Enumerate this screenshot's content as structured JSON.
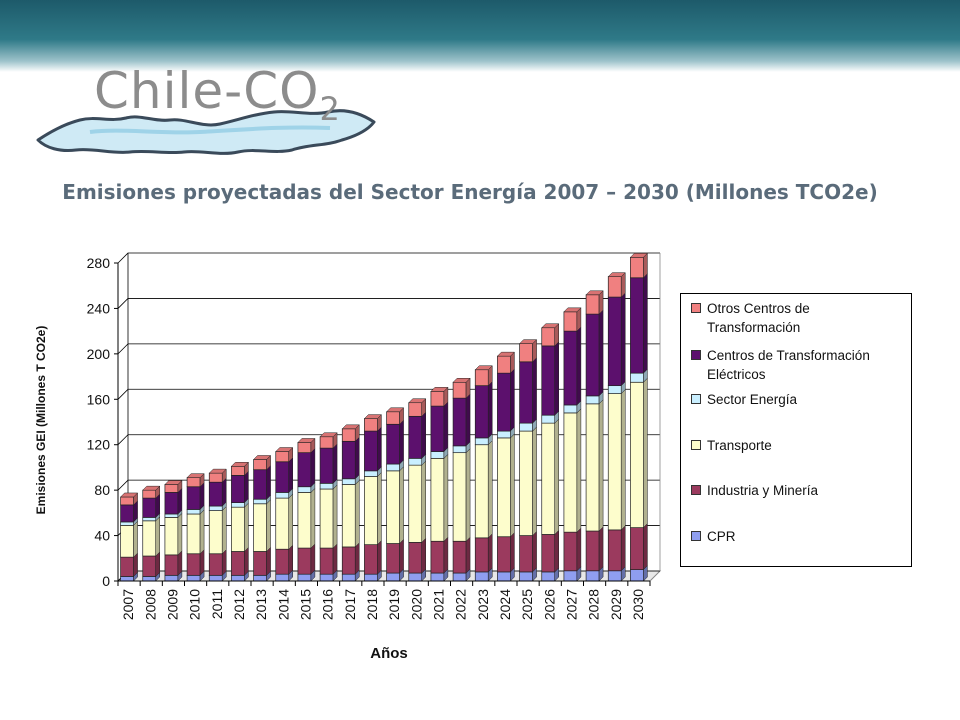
{
  "logo": {
    "name": "Chile",
    "dash": "-",
    "co": "CO",
    "sub": "2"
  },
  "chart_data": {
    "type": "bar",
    "stacked": true,
    "title": "Emisiones proyectadas del Sector Energía 2007 – 2030 (Millones TCO2e)",
    "xlabel": "Años",
    "ylabel": "Emisiones GEI (Millones T CO2e)",
    "ylim": [
      0,
      280
    ],
    "yticks": [
      0,
      40,
      80,
      120,
      160,
      200,
      240,
      280
    ],
    "grid": true,
    "legend_position": "right",
    "categories": [
      "2007",
      "2008",
      "2009",
      "2010",
      "2011",
      "2012",
      "2013",
      "2014",
      "2015",
      "2016",
      "2017",
      "2018",
      "2019",
      "2020",
      "2021",
      "2022",
      "2023",
      "2024",
      "2025",
      "2026",
      "2027",
      "2028",
      "2029",
      "2030"
    ],
    "series": [
      {
        "name": "CPR",
        "color": "#8f9ef0",
        "values": [
          4,
          4,
          5,
          5,
          5,
          5,
          5,
          6,
          6,
          6,
          6,
          6,
          7,
          7,
          7,
          7,
          8,
          8,
          8,
          8,
          9,
          9,
          9,
          10
        ]
      },
      {
        "name": "Industria y Minería",
        "color": "#9b3a5e",
        "values": [
          17,
          18,
          18,
          19,
          19,
          21,
          21,
          22,
          23,
          23,
          24,
          26,
          26,
          27,
          28,
          28,
          30,
          31,
          32,
          33,
          34,
          35,
          36,
          37
        ]
      },
      {
        "name": "Transporte",
        "color": "#fdfdcc",
        "values": [
          28,
          31,
          33,
          35,
          38,
          39,
          42,
          45,
          49,
          52,
          55,
          60,
          64,
          68,
          73,
          78,
          82,
          87,
          92,
          98,
          105,
          112,
          120,
          128
        ]
      },
      {
        "name": "Sector Energía",
        "color": "#c9efff",
        "values": [
          3,
          3,
          3,
          4,
          4,
          4,
          4,
          5,
          5,
          5,
          5,
          5,
          6,
          6,
          6,
          6,
          6,
          6,
          7,
          7,
          7,
          7,
          7,
          8
        ]
      },
      {
        "name": "Centros de Transformación Eléctricos",
        "color": "#5c106d",
        "values": [
          15,
          17,
          19,
          20,
          21,
          24,
          26,
          27,
          30,
          31,
          33,
          35,
          35,
          37,
          40,
          42,
          46,
          51,
          54,
          61,
          65,
          72,
          78,
          84
        ]
      },
      {
        "name": "Otros Centros de Transformación",
        "color": "#f08080",
        "values": [
          7,
          7,
          7,
          8,
          8,
          8,
          9,
          9,
          9,
          10,
          11,
          11,
          11,
          12,
          13,
          14,
          14,
          15,
          16,
          16,
          17,
          17,
          18,
          18
        ]
      }
    ]
  }
}
